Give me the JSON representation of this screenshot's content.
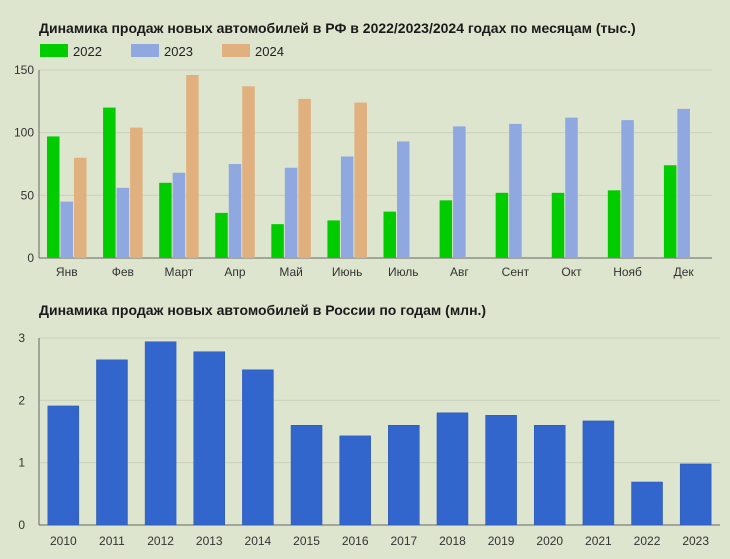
{
  "chart_data": [
    {
      "type": "bar",
      "title": "Динамика продаж новых автомобилей в РФ в 2022/2023/2024 годах по месяцам (тыс.)",
      "categories": [
        "Янв",
        "Фев",
        "Март",
        "Апр",
        "Май",
        "Июнь",
        "Июль",
        "Авг",
        "Сент",
        "Окт",
        "Нояб",
        "Дек"
      ],
      "series": [
        {
          "name": "2022",
          "color": "#00cc00",
          "values": [
            97,
            120,
            60,
            36,
            27,
            30,
            37,
            46,
            52,
            52,
            54,
            74
          ]
        },
        {
          "name": "2023",
          "color": "#8fa8e0",
          "values": [
            45,
            56,
            68,
            75,
            72,
            81,
            93,
            105,
            107,
            112,
            110,
            119
          ]
        },
        {
          "name": "2024",
          "color": "#e0b07f",
          "values": [
            80,
            104,
            146,
            137,
            127,
            124,
            null,
            null,
            null,
            null,
            null,
            null
          ]
        }
      ],
      "yticks": [
        0,
        50,
        100,
        150
      ],
      "ylim": [
        0,
        150
      ],
      "legend": "top-left",
      "grid": true
    },
    {
      "type": "bar",
      "title": "Динамика продаж новых автомобилей в России по годам (млн.)",
      "categories": [
        "2010",
        "2011",
        "2012",
        "2013",
        "2014",
        "2015",
        "2016",
        "2017",
        "2018",
        "2019",
        "2020",
        "2021",
        "2022",
        "2023"
      ],
      "series": [
        {
          "color": "#3366cc",
          "values": [
            1.91,
            2.65,
            2.94,
            2.78,
            2.49,
            1.6,
            1.43,
            1.6,
            1.8,
            1.76,
            1.6,
            1.67,
            0.69,
            0.98
          ]
        }
      ],
      "yticks": [
        0,
        1,
        2,
        3
      ],
      "ylim": [
        0,
        3
      ],
      "grid": true
    }
  ]
}
